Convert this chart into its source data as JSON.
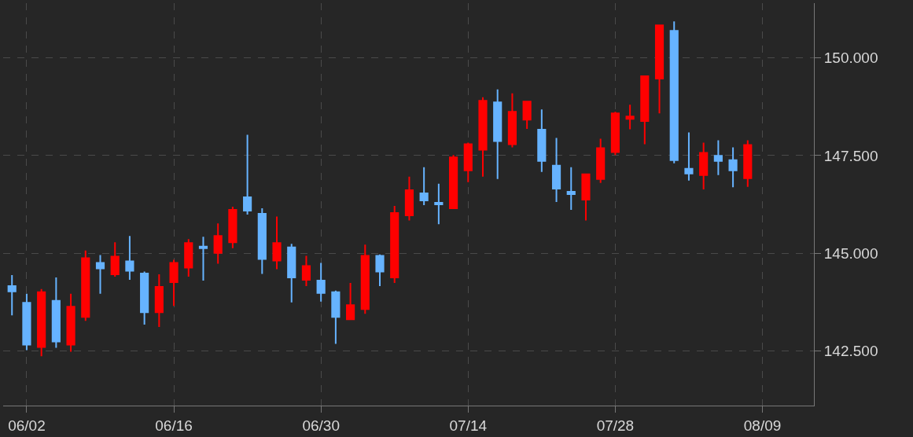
{
  "chart_data": {
    "type": "candlestick",
    "categories": [
      null,
      "06/02",
      null,
      null,
      null,
      null,
      null,
      null,
      null,
      null,
      null,
      "06/16",
      null,
      null,
      null,
      null,
      null,
      null,
      null,
      null,
      null,
      "06/30",
      null,
      null,
      null,
      null,
      null,
      null,
      null,
      null,
      null,
      "07/14",
      null,
      null,
      null,
      null,
      null,
      null,
      null,
      null,
      null,
      "07/28",
      null,
      null,
      null,
      null,
      null,
      null,
      null,
      null,
      null,
      "08/09"
    ],
    "ohlc": [
      [
        144.16,
        144.44,
        143.41,
        144.02
      ],
      [
        143.73,
        143.96,
        142.52,
        142.66
      ],
      [
        142.6,
        144.08,
        142.36,
        144.0
      ],
      [
        143.78,
        144.38,
        142.58,
        142.74
      ],
      [
        142.66,
        143.96,
        142.48,
        143.63
      ],
      [
        143.37,
        145.07,
        143.27,
        144.87
      ],
      [
        144.75,
        144.95,
        143.96,
        144.61
      ],
      [
        144.46,
        145.28,
        144.4,
        144.91
      ],
      [
        144.79,
        145.44,
        144.32,
        144.55
      ],
      [
        144.48,
        144.53,
        143.17,
        143.49
      ],
      [
        143.49,
        144.46,
        143.11,
        144.14
      ],
      [
        144.26,
        144.83,
        143.65,
        144.75
      ],
      [
        144.63,
        145.36,
        144.4,
        145.26
      ],
      [
        145.17,
        145.42,
        144.3,
        145.13
      ],
      [
        145.01,
        145.76,
        144.73,
        145.44
      ],
      [
        145.28,
        146.19,
        145.13,
        146.11
      ],
      [
        146.43,
        148.03,
        145.99,
        146.09
      ],
      [
        146.01,
        146.15,
        144.47,
        144.85
      ],
      [
        144.81,
        145.94,
        144.59,
        145.26
      ],
      [
        145.15,
        145.24,
        143.74,
        144.38
      ],
      [
        144.32,
        144.93,
        144.16,
        144.67
      ],
      [
        144.3,
        144.75,
        143.76,
        143.98
      ],
      [
        144.0,
        144.04,
        142.68,
        143.37
      ],
      [
        143.31,
        144.24,
        143.31,
        143.67
      ],
      [
        143.57,
        145.22,
        143.45,
        144.93
      ],
      [
        144.93,
        144.97,
        144.16,
        144.53
      ],
      [
        144.38,
        146.21,
        144.24,
        146.03
      ],
      [
        145.97,
        146.96,
        145.84,
        146.61
      ],
      [
        146.53,
        147.2,
        146.23,
        146.35
      ],
      [
        146.29,
        146.78,
        145.74,
        146.25
      ],
      [
        146.15,
        147.51,
        146.13,
        147.45
      ],
      [
        147.12,
        147.83,
        146.82,
        147.79
      ],
      [
        147.65,
        148.99,
        146.96,
        148.9
      ],
      [
        148.86,
        149.19,
        146.9,
        147.87
      ],
      [
        147.79,
        149.09,
        147.71,
        148.62
      ],
      [
        148.42,
        148.9,
        148.18,
        148.88
      ],
      [
        148.16,
        148.68,
        147.08,
        147.36
      ],
      [
        147.24,
        147.95,
        146.31,
        146.65
      ],
      [
        146.57,
        147.2,
        146.11,
        146.51
      ],
      [
        146.37,
        147.04,
        145.84,
        147.02
      ],
      [
        146.9,
        147.93,
        146.8,
        147.69
      ],
      [
        147.59,
        148.62,
        147.51,
        148.58
      ],
      [
        148.44,
        148.8,
        148.17,
        148.5
      ],
      [
        148.38,
        149.53,
        147.79,
        149.53
      ],
      [
        149.47,
        150.83,
        148.58,
        150.83
      ],
      [
        150.69,
        150.93,
        147.3,
        147.38
      ],
      [
        147.16,
        148.09,
        146.86,
        147.04
      ],
      [
        147.0,
        147.83,
        146.63,
        147.57
      ],
      [
        147.49,
        147.89,
        147.0,
        147.36
      ],
      [
        147.38,
        147.71,
        146.69,
        147.12
      ],
      [
        146.92,
        147.89,
        146.7,
        147.77
      ],
      null
    ],
    "colors": [
      "#66b3ff",
      "#66b3ff",
      "#ff0000",
      "#66b3ff",
      "#ff0000",
      "#ff0000",
      "#66b3ff",
      "#ff0000",
      "#66b3ff",
      "#66b3ff",
      "#ff0000",
      "#ff0000",
      "#ff0000",
      "#66b3ff",
      "#ff0000",
      "#ff0000",
      "#66b3ff",
      "#66b3ff",
      "#ff0000",
      "#66b3ff",
      "#ff0000",
      "#66b3ff",
      "#66b3ff",
      "#ff0000",
      "#ff0000",
      "#66b3ff",
      "#ff0000",
      "#ff0000",
      "#66b3ff",
      "#66b3ff",
      "#ff0000",
      "#ff0000",
      "#ff0000",
      "#66b3ff",
      "#ff0000",
      "#ff0000",
      "#66b3ff",
      "#66b3ff",
      "#66b3ff",
      "#ff0000",
      "#ff0000",
      "#ff0000",
      "#ff0000",
      "#ff0000",
      "#ff0000",
      "#66b3ff",
      "#66b3ff",
      "#ff0000",
      "#66b3ff",
      "#66b3ff",
      "#ff0000",
      null
    ],
    "ylim": [
      141.1,
      151.4
    ],
    "yticks": [
      {
        "value": 142.5,
        "label": "142.500"
      },
      {
        "value": 145,
        "label": "145.000"
      },
      {
        "value": 147.5,
        "label": "147.500"
      },
      {
        "value": 150,
        "label": "150.000"
      }
    ],
    "grid": true
  }
}
